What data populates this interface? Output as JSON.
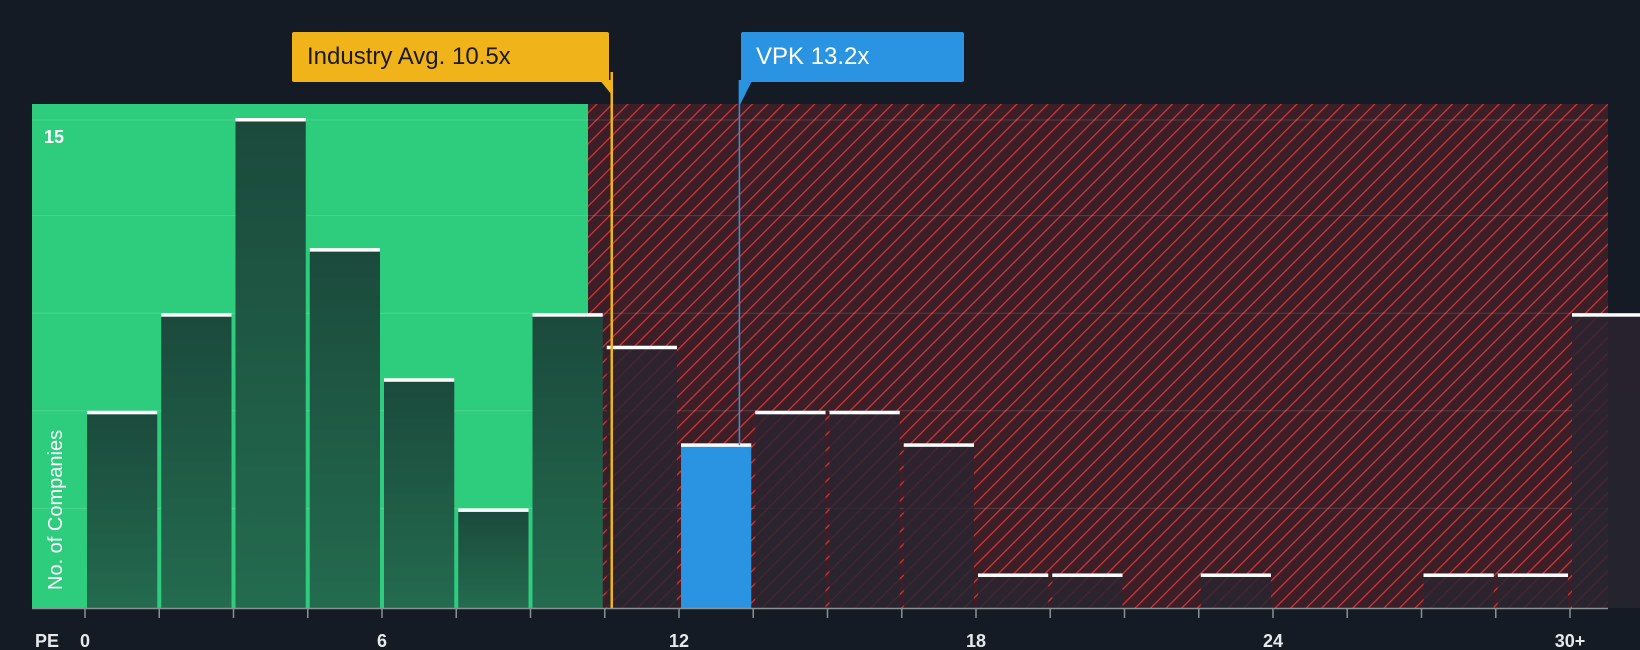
{
  "chart_data": {
    "type": "bar",
    "title": "",
    "xlabel": "PE",
    "ylabel": "No. of Companies",
    "x_tick_labels": [
      "0",
      "6",
      "12",
      "18",
      "24",
      "30+"
    ],
    "x_tick_values": [
      0,
      6,
      12,
      18,
      24,
      30
    ],
    "ylim": [
      0,
      15.5
    ],
    "y_max_label": "15",
    "bin_width": 1.5,
    "bins": [
      {
        "x": 0.75,
        "value": 6
      },
      {
        "x": 2.25,
        "value": 9
      },
      {
        "x": 3.75,
        "value": 15
      },
      {
        "x": 5.25,
        "value": 11
      },
      {
        "x": 6.75,
        "value": 7
      },
      {
        "x": 8.25,
        "value": 3
      },
      {
        "x": 9.75,
        "value": 9
      },
      {
        "x": 11.25,
        "value": 8
      },
      {
        "x": 12.75,
        "value": 5
      },
      {
        "x": 14.25,
        "value": 6
      },
      {
        "x": 15.75,
        "value": 6
      },
      {
        "x": 17.25,
        "value": 5
      },
      {
        "x": 18.75,
        "value": 1
      },
      {
        "x": 20.25,
        "value": 1
      },
      {
        "x": 21.75,
        "value": 0
      },
      {
        "x": 23.25,
        "value": 1
      },
      {
        "x": 24.75,
        "value": 0
      },
      {
        "x": 26.25,
        "value": 0
      },
      {
        "x": 27.75,
        "value": 1
      },
      {
        "x": 29.25,
        "value": 1
      },
      {
        "x": 30.75,
        "value": 9
      }
    ],
    "industry_avg": {
      "label": "Industry Avg. 10.5x",
      "value": 10.5
    },
    "company": {
      "label": "VPK 13.2x",
      "value": 13.2,
      "highlight_bin_x": 12.75
    },
    "fair_zone_end": 10,
    "colors": {
      "background": "#151b24",
      "fair_zone": "#2ecc7d",
      "bar": "#1e4a3d",
      "highlight_bar": "#2a93e2",
      "industry_line": "#f0b31a",
      "company_line": "#2a93e2",
      "hatch": "#d6363b"
    }
  }
}
